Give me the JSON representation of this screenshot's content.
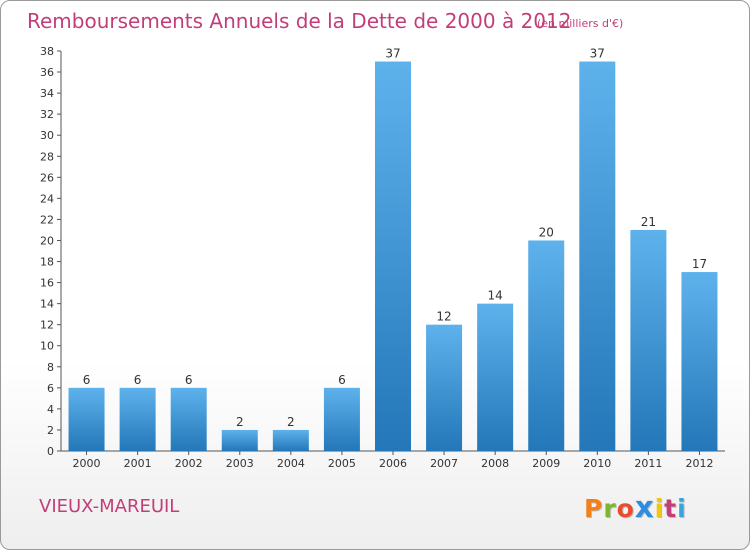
{
  "header": {
    "title": "Remboursements Annuels de la Dette de 2000 à 2012",
    "unit": "(en milliers d'€)"
  },
  "footer": {
    "commune": "VIEUX-MAREUIL",
    "logo_text": "Proxiti"
  },
  "colors": {
    "title": "#c23e79",
    "bar_top": "#5eb2ec",
    "bar_bottom": "#2477b8",
    "logo": [
      "#f07f1c",
      "#79b829",
      "#e94c2e",
      "#2d8de0",
      "#f2c511",
      "#c23e79",
      "#3aa2dc"
    ]
  },
  "chart_data": {
    "type": "bar",
    "categories": [
      "2000",
      "2001",
      "2002",
      "2003",
      "2004",
      "2005",
      "2006",
      "2007",
      "2008",
      "2009",
      "2010",
      "2011",
      "2012"
    ],
    "values": [
      6,
      6,
      6,
      2,
      2,
      6,
      37,
      12,
      14,
      20,
      37,
      21,
      17
    ],
    "title": "Remboursements Annuels de la Dette de 2000 à 2012",
    "unit": "(en milliers d'€)",
    "ylim": [
      0,
      38
    ],
    "yticks": [
      0,
      2,
      4,
      6,
      8,
      10,
      12,
      14,
      16,
      18,
      20,
      22,
      24,
      26,
      28,
      30,
      32,
      34,
      36,
      38
    ],
    "grid": false,
    "data_labels": true
  }
}
